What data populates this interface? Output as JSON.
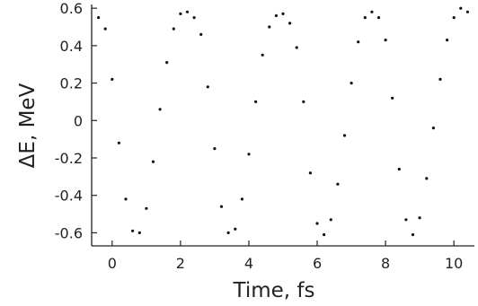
{
  "chart_data": {
    "type": "scatter",
    "title": "",
    "xlabel": "Time, fs",
    "ylabel": "ΔE, MeV",
    "xlim": [
      -0.6,
      10.6
    ],
    "ylim": [
      -0.67,
      0.62
    ],
    "xticks": [
      0,
      2,
      4,
      6,
      8,
      10
    ],
    "xtick_labels": [
      "0",
      "2",
      "4",
      "6",
      "8",
      "10"
    ],
    "yticks": [
      0.6,
      0.4,
      0.2,
      0,
      -0.2,
      -0.4,
      -0.6
    ],
    "ytick_labels": [
      "0.6",
      "0.4",
      "0.2",
      "0",
      "-0.2",
      "-0.4",
      "-0.6"
    ],
    "grid": false,
    "legend": "none",
    "marker_color": "#111111",
    "series": [
      {
        "x": [
          -0.4,
          -0.2,
          0.0,
          0.2,
          0.4,
          0.6,
          0.8,
          1.0,
          1.2,
          1.4,
          1.6,
          1.8,
          2.0,
          2.2,
          2.4,
          2.6,
          2.8,
          3.0,
          3.2,
          3.4,
          3.6,
          3.8,
          4.0,
          4.2,
          4.4,
          4.6,
          4.8,
          5.0,
          5.2,
          5.4,
          5.6,
          5.8,
          6.0,
          6.2,
          6.4,
          6.6,
          6.8,
          7.0,
          7.2,
          7.4,
          7.6,
          7.8,
          8.0,
          8.2,
          8.4,
          8.6,
          8.8,
          9.0,
          9.2,
          9.4,
          9.6,
          9.8,
          10.0,
          10.2,
          10.4
        ],
        "y": [
          0.55,
          0.49,
          0.22,
          -0.12,
          -0.42,
          -0.59,
          -0.6,
          -0.47,
          -0.22,
          0.06,
          0.31,
          0.49,
          0.57,
          0.58,
          0.55,
          0.46,
          0.18,
          -0.15,
          -0.46,
          -0.6,
          -0.58,
          -0.42,
          -0.18,
          0.1,
          0.35,
          0.5,
          0.56,
          0.57,
          0.52,
          0.39,
          0.1,
          -0.28,
          -0.55,
          -0.61,
          -0.53,
          -0.34,
          -0.08,
          0.2,
          0.42,
          0.55,
          0.58,
          0.55,
          0.43,
          0.12,
          -0.26,
          -0.53,
          -0.61,
          -0.52,
          -0.31,
          -0.04,
          0.22,
          0.43,
          0.55,
          0.6,
          0.58
        ]
      }
    ]
  }
}
